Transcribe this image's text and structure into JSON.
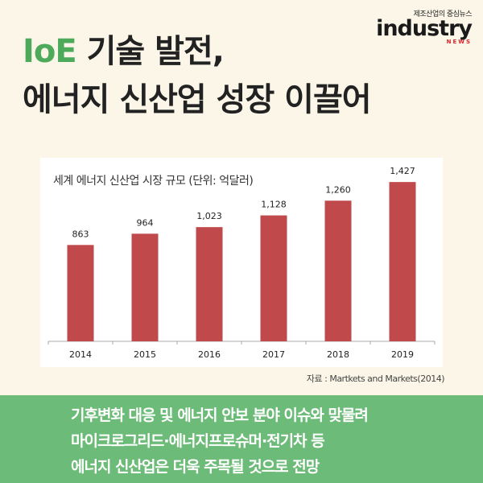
{
  "brand": {
    "tagline": "제조산업의 중심뉴스",
    "logo": "industry",
    "news": "NEWS"
  },
  "headline": {
    "line1_accent": "IoE",
    "line1_rest": " 기술 발전,",
    "line2": "에너지 신산업 성장 이끌어"
  },
  "chart_data": {
    "type": "bar",
    "title": "세계 에너지 신산업 시장 규모 (단위: 억달러)",
    "categories": [
      "2014",
      "2015",
      "2016",
      "2017",
      "2018",
      "2019"
    ],
    "values": [
      863,
      964,
      1023,
      1128,
      1260,
      1427
    ],
    "value_labels": [
      "863",
      "964",
      "1,023",
      "1,128",
      "1,260",
      "1,427"
    ],
    "ylim": [
      0,
      1500
    ],
    "bar_color": "#c0494c",
    "grid": false
  },
  "source": "자료 : Martkets and Markets(2014)",
  "footer": {
    "lines": [
      "기후변화 대응 및 에너지 안보 분야 이슈와 맞물려",
      "마이크로그리드·에너지프로슈머·전기차 등",
      "에너지 신산업은 더욱 주목될 것으로 전망"
    ]
  }
}
